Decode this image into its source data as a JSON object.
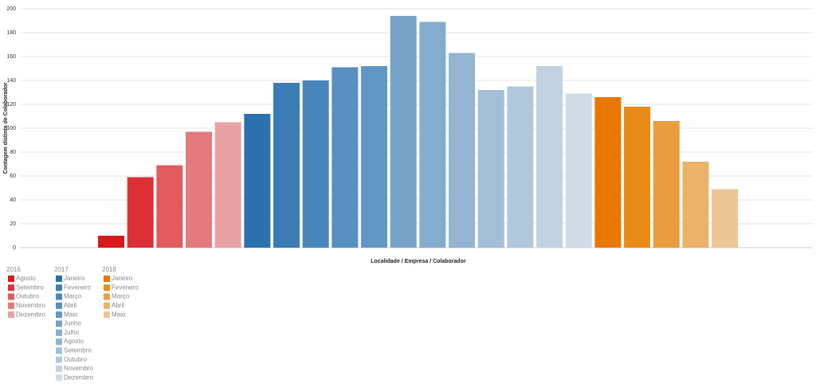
{
  "chart_data": {
    "type": "bar",
    "ylabel": "Contagem distinta de Colaborador",
    "xlabel": "Localidade / Empresa / Colaborador",
    "ylim": [
      0,
      200
    ],
    "yticks": [
      0,
      20,
      40,
      60,
      80,
      100,
      120,
      140,
      160,
      180,
      200
    ],
    "grid": true,
    "groups": [
      {
        "name": "2016",
        "months": [
          {
            "name": "Agosto",
            "color": "#d7191c",
            "value": 10
          },
          {
            "name": "Setembro",
            "color": "#dc2f36",
            "value": 59
          },
          {
            "name": "Outubro",
            "color": "#e05a5e",
            "value": 69
          },
          {
            "name": "Novembro",
            "color": "#e47a7c",
            "value": 97
          },
          {
            "name": "Dezembro",
            "color": "#e8a2a3",
            "value": 105
          }
        ]
      },
      {
        "name": "2017",
        "months": [
          {
            "name": "Janeiro",
            "color": "#2b71ad",
            "value": 112
          },
          {
            "name": "Fevereiro",
            "color": "#3a7cb6",
            "value": 138
          },
          {
            "name": "Março",
            "color": "#4786bc",
            "value": 140
          },
          {
            "name": "Abril",
            "color": "#568fc0",
            "value": 151
          },
          {
            "name": "Maio",
            "color": "#6197c4",
            "value": 152
          },
          {
            "name": "Junho",
            "color": "#75a2c9",
            "value": 194
          },
          {
            "name": "Julho",
            "color": "#84acce",
            "value": 189
          },
          {
            "name": "Agosto",
            "color": "#93b5d2",
            "value": 163
          },
          {
            "name": "Setembro",
            "color": "#a3bfd7",
            "value": 132
          },
          {
            "name": "Outubro",
            "color": "#b0c8dc",
            "value": 135
          },
          {
            "name": "Novembro",
            "color": "#c0d2e1",
            "value": 152
          },
          {
            "name": "Dezembro",
            "color": "#d0dbe6",
            "value": 129
          }
        ]
      },
      {
        "name": "2018",
        "months": [
          {
            "name": "Janeiro",
            "color": "#e87800",
            "value": 126
          },
          {
            "name": "Fevereiro",
            "color": "#e88b17",
            "value": 118
          },
          {
            "name": "Março",
            "color": "#ea9d3e",
            "value": 106
          },
          {
            "name": "Abril",
            "color": "#ebb26a",
            "value": 72
          },
          {
            "name": "Maio",
            "color": "#ecc796",
            "value": 49
          }
        ]
      }
    ]
  }
}
